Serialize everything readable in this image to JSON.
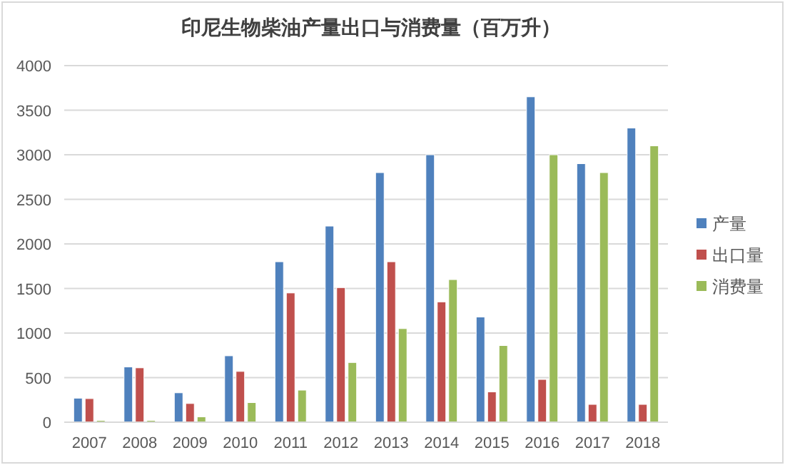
{
  "chart_data": {
    "type": "bar",
    "title": "印尼生物柴油产量出口与消费量（百万升）",
    "categories": [
      "2007",
      "2008",
      "2009",
      "2010",
      "2011",
      "2012",
      "2013",
      "2014",
      "2015",
      "2016",
      "2017",
      "2018"
    ],
    "series": [
      {
        "name": "产量",
        "color": "#4f81bd",
        "values": [
          270,
          620,
          330,
          745,
          1800,
          2200,
          2800,
          3000,
          1180,
          3650,
          2900,
          3300
        ]
      },
      {
        "name": "出口量",
        "color": "#c0504d",
        "values": [
          265,
          610,
          210,
          570,
          1450,
          1510,
          1800,
          1350,
          340,
          480,
          200,
          200
        ]
      },
      {
        "name": "消费量",
        "color": "#9bbb59",
        "values": [
          20,
          20,
          60,
          220,
          360,
          670,
          1050,
          1600,
          860,
          3000,
          2800,
          3100
        ]
      }
    ],
    "ylim": [
      0,
      4000
    ],
    "yticks": [
      0,
      500,
      1000,
      1500,
      2000,
      2500,
      3000,
      3500,
      4000
    ],
    "grid": "y",
    "legend": "right"
  }
}
